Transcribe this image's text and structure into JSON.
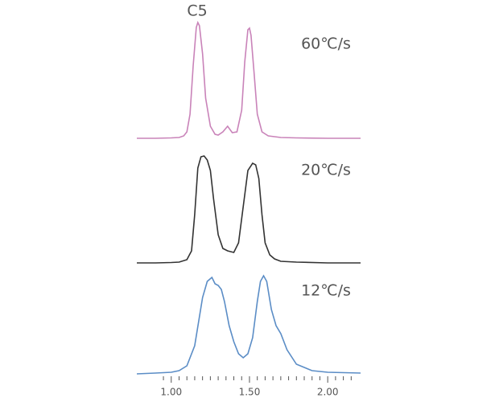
{
  "chart_data": [
    {
      "type": "line",
      "title": "60℃/s",
      "annotation": "C5",
      "color": "#c983b9",
      "ylim": [
        0,
        150
      ],
      "xlim": [
        0.78,
        2.21
      ],
      "x": [
        0.78,
        0.9,
        1.0,
        1.05,
        1.08,
        1.1,
        1.12,
        1.14,
        1.16,
        1.17,
        1.18,
        1.2,
        1.22,
        1.25,
        1.28,
        1.3,
        1.33,
        1.36,
        1.39,
        1.42,
        1.45,
        1.47,
        1.49,
        1.5,
        1.51,
        1.53,
        1.55,
        1.58,
        1.62,
        1.7,
        1.8,
        2.0,
        2.21
      ],
      "values": [
        0,
        0,
        0.5,
        1,
        3,
        8,
        30,
        90,
        138,
        144,
        140,
        105,
        50,
        15,
        5,
        4,
        8,
        15,
        7,
        8,
        35,
        95,
        135,
        137,
        128,
        80,
        30,
        8,
        3,
        1,
        0.5,
        0,
        0
      ]
    },
    {
      "type": "line",
      "title": "20℃/s",
      "color": "#333333",
      "ylim": [
        0,
        150
      ],
      "xlim": [
        0.78,
        2.21
      ],
      "x": [
        0.78,
        0.9,
        1.0,
        1.05,
        1.1,
        1.13,
        1.15,
        1.17,
        1.19,
        1.21,
        1.23,
        1.25,
        1.27,
        1.3,
        1.33,
        1.36,
        1.38,
        1.4,
        1.43,
        1.46,
        1.49,
        1.52,
        1.54,
        1.56,
        1.58,
        1.6,
        1.63,
        1.66,
        1.7,
        1.8,
        2.0,
        2.21
      ],
      "values": [
        0,
        0,
        0.5,
        1,
        4,
        15,
        60,
        118,
        132,
        133,
        128,
        115,
        80,
        35,
        18,
        15,
        14,
        13,
        25,
        70,
        115,
        124,
        122,
        105,
        60,
        25,
        10,
        5,
        2,
        1,
        0,
        0
      ]
    },
    {
      "type": "line",
      "title": "12℃/s",
      "color": "#5b8dc6",
      "ylim": [
        0,
        150
      ],
      "xlim": [
        0.78,
        2.21
      ],
      "x": [
        0.78,
        0.9,
        1.0,
        1.05,
        1.1,
        1.15,
        1.2,
        1.23,
        1.26,
        1.28,
        1.3,
        1.32,
        1.34,
        1.37,
        1.4,
        1.43,
        1.46,
        1.49,
        1.52,
        1.55,
        1.57,
        1.59,
        1.61,
        1.64,
        1.67,
        1.7,
        1.74,
        1.8,
        1.9,
        2.0,
        2.21
      ],
      "values": [
        0,
        1,
        2,
        4,
        10,
        35,
        95,
        115,
        120,
        112,
        110,
        105,
        90,
        60,
        40,
        25,
        20,
        25,
        45,
        90,
        115,
        122,
        115,
        80,
        60,
        50,
        30,
        12,
        4,
        2,
        1
      ],
      "xticks": [
        {
          "value": 1.0,
          "label": "1.00"
        },
        {
          "value": 1.5,
          "label": "1.50"
        },
        {
          "value": 2.0,
          "label": "2.00"
        }
      ],
      "xminorticks": [
        0.95,
        1.05,
        1.1,
        1.15,
        1.2,
        1.25,
        1.3,
        1.35,
        1.4,
        1.45,
        1.55,
        1.6,
        1.65,
        1.7,
        1.75,
        1.8,
        1.85,
        1.9,
        1.95,
        2.05,
        2.1,
        2.15
      ]
    }
  ]
}
